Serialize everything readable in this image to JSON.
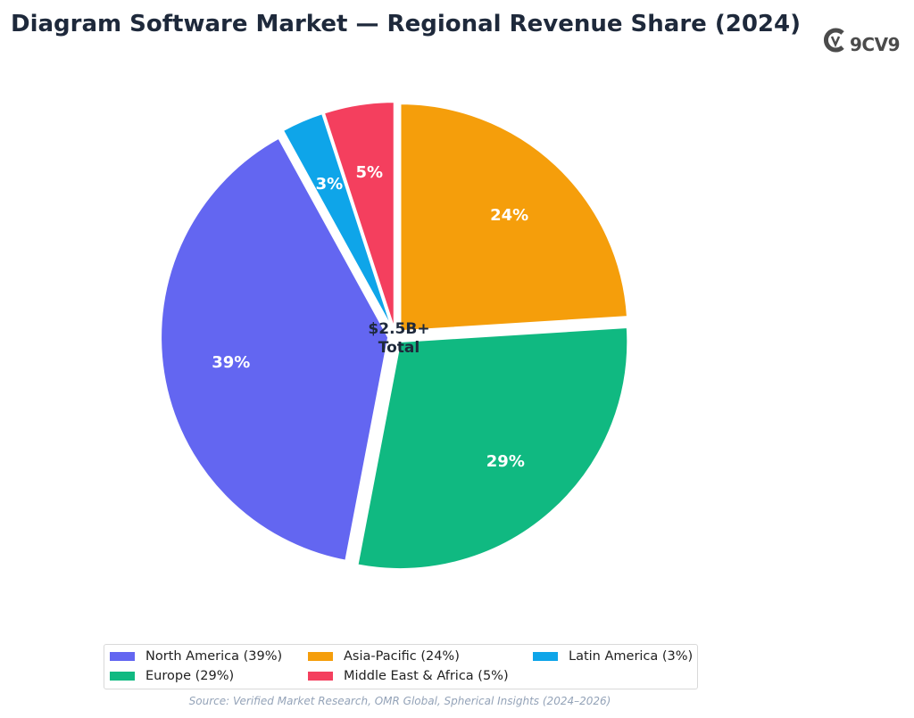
{
  "title": "Diagram Software Market — Regional Revenue Share (2024)",
  "logo": {
    "text": "9CV9",
    "icon": "9cv9-logo-icon"
  },
  "center_label": {
    "line1": "$2.5B+",
    "line2": "Total"
  },
  "source": "Source: Verified Market Research, OMR Global, Spherical Insights (2024–2026)",
  "legend": {
    "items": [
      {
        "label": "North America (39%)",
        "color": "#6366f1"
      },
      {
        "label": "Asia-Pacific (24%)",
        "color": "#f59e0b"
      },
      {
        "label": "Latin America (3%)",
        "color": "#0ea5e9"
      },
      {
        "label": "Europe (29%)",
        "color": "#10b981"
      },
      {
        "label": "Middle East & Africa (5%)",
        "color": "#f43f5e"
      }
    ]
  },
  "chart_data": {
    "type": "pie",
    "title": "Diagram Software Market — Regional Revenue Share (2024)",
    "slices": [
      {
        "name": "Asia-Pacific",
        "value": 24,
        "label": "24%",
        "color": "#f59e0b"
      },
      {
        "name": "Europe",
        "value": 29,
        "label": "29%",
        "color": "#10b981"
      },
      {
        "name": "North America",
        "value": 39,
        "label": "39%",
        "color": "#6366f1"
      },
      {
        "name": "Latin America",
        "value": 3,
        "label": "3%",
        "color": "#0ea5e9"
      },
      {
        "name": "Middle East & Africa",
        "value": 5,
        "label": "5%",
        "color": "#f43f5e"
      }
    ],
    "legend_position": "bottom"
  }
}
